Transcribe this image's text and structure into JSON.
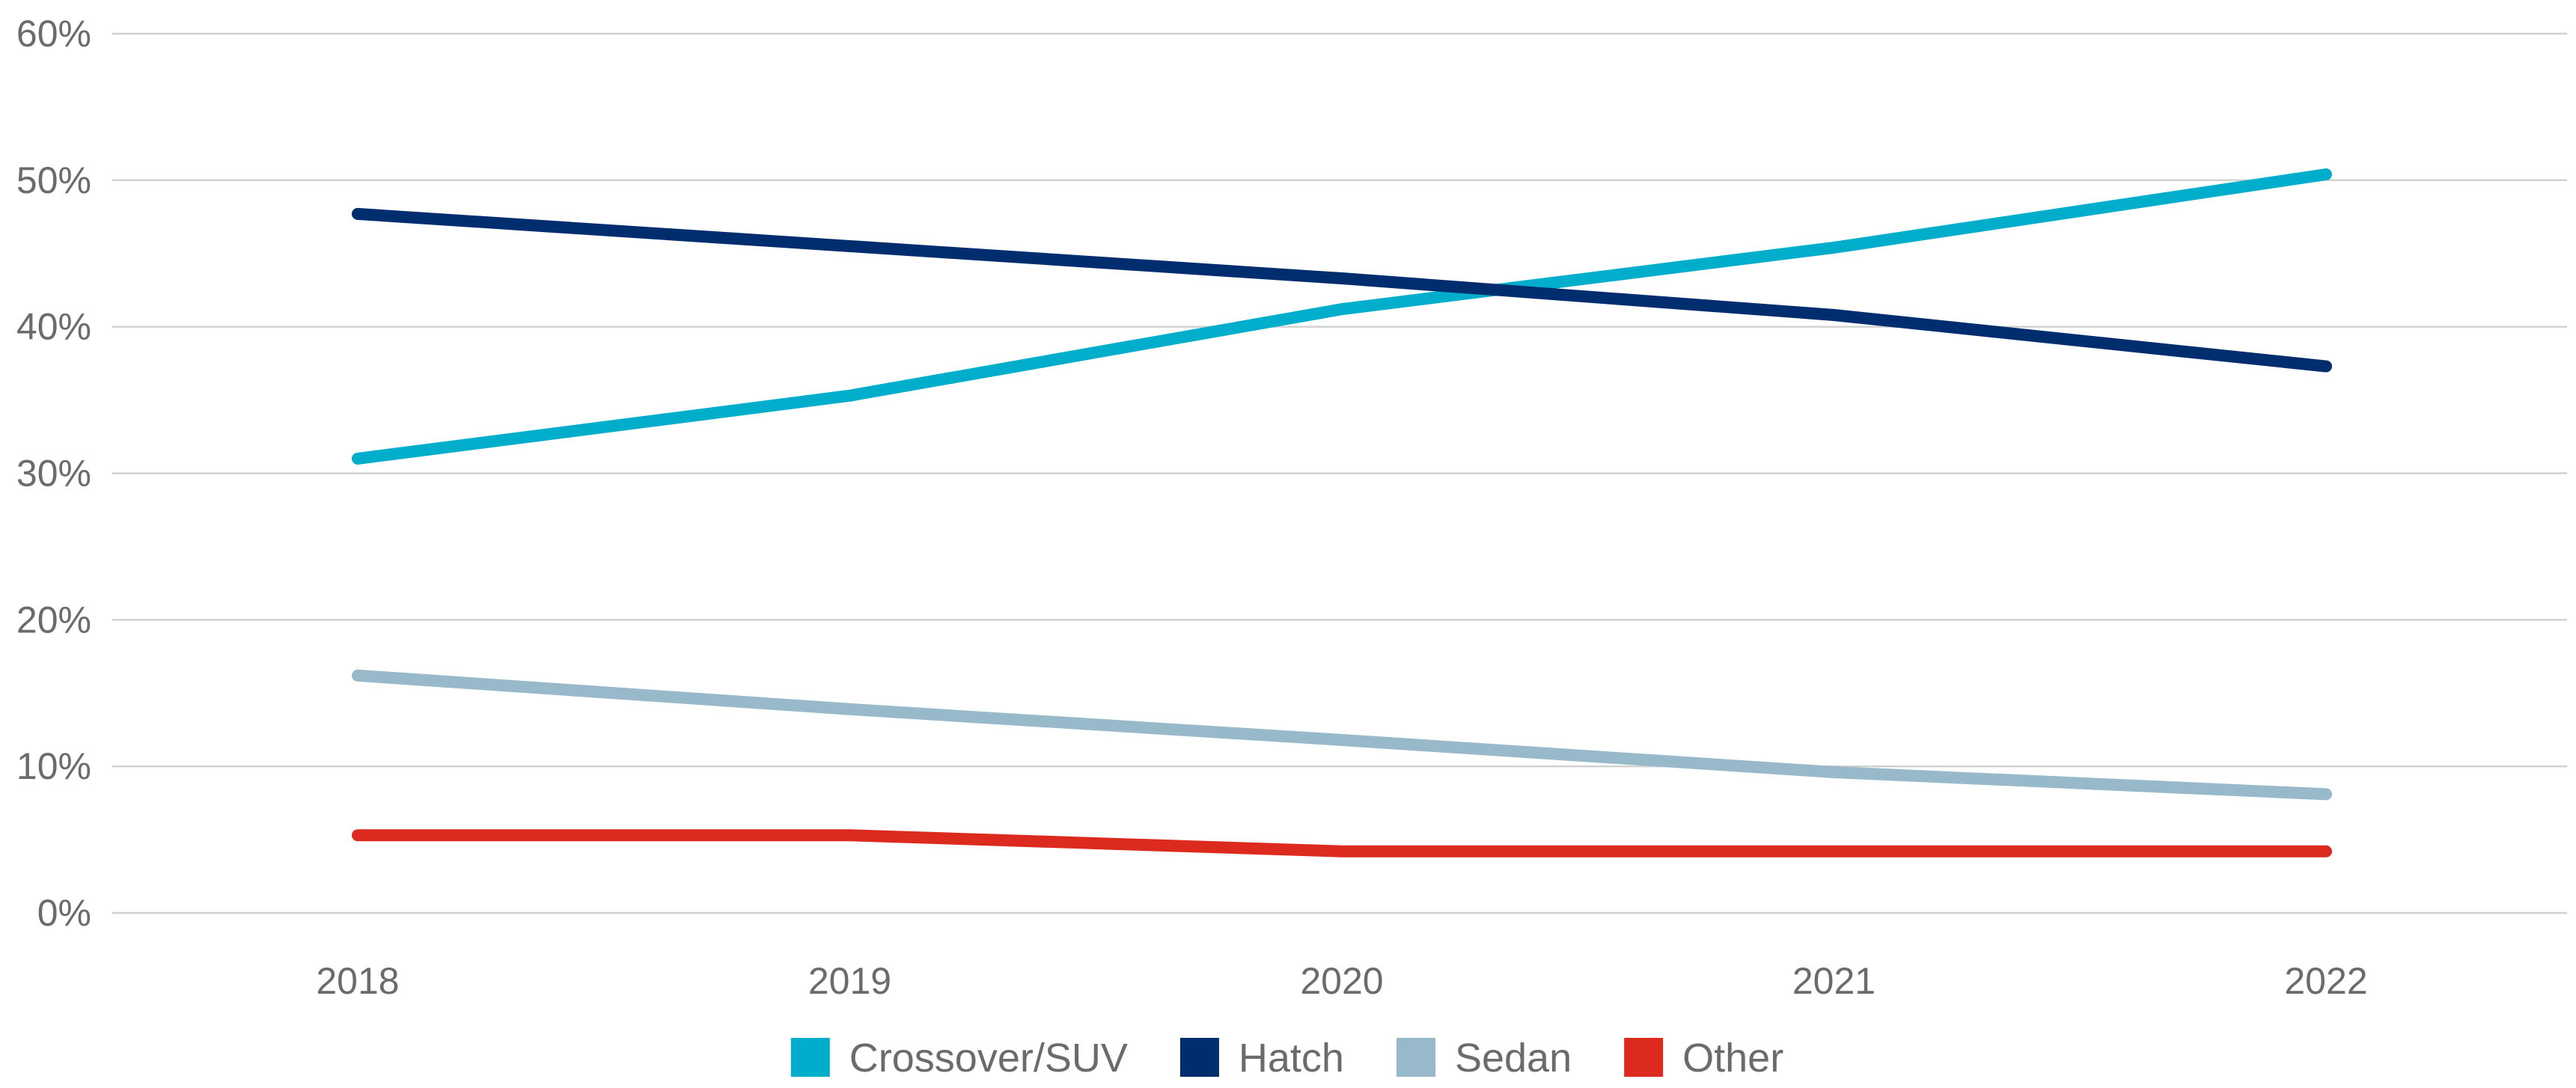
{
  "chart_data": {
    "type": "line",
    "title": "",
    "xlabel": "",
    "ylabel": "",
    "categories": [
      "2018",
      "2019",
      "2020",
      "2021",
      "2022"
    ],
    "ylim": [
      0,
      60
    ],
    "yticks": [
      0,
      10,
      20,
      30,
      40,
      50,
      60
    ],
    "ytick_labels": [
      "0%",
      "10%",
      "20%",
      "30%",
      "40%",
      "50%",
      "60%"
    ],
    "grid": true,
    "legend_position": "bottom-center",
    "series": [
      {
        "name": "Crossover/SUV",
        "color": "#00aecb",
        "values": [
          31,
          35.3,
          41.2,
          45.4,
          50.4
        ]
      },
      {
        "name": "Hatch",
        "color": "#002d6e",
        "values": [
          47.7,
          45.5,
          43.3,
          40.8,
          37.3
        ]
      },
      {
        "name": "Sedan",
        "color": "#97b9ca",
        "values": [
          16.2,
          13.9,
          11.8,
          9.6,
          8.1
        ]
      },
      {
        "name": "Other",
        "color": "#dc2a1f",
        "values": [
          5.3,
          5.3,
          4.2,
          4.2,
          4.2
        ]
      }
    ]
  }
}
